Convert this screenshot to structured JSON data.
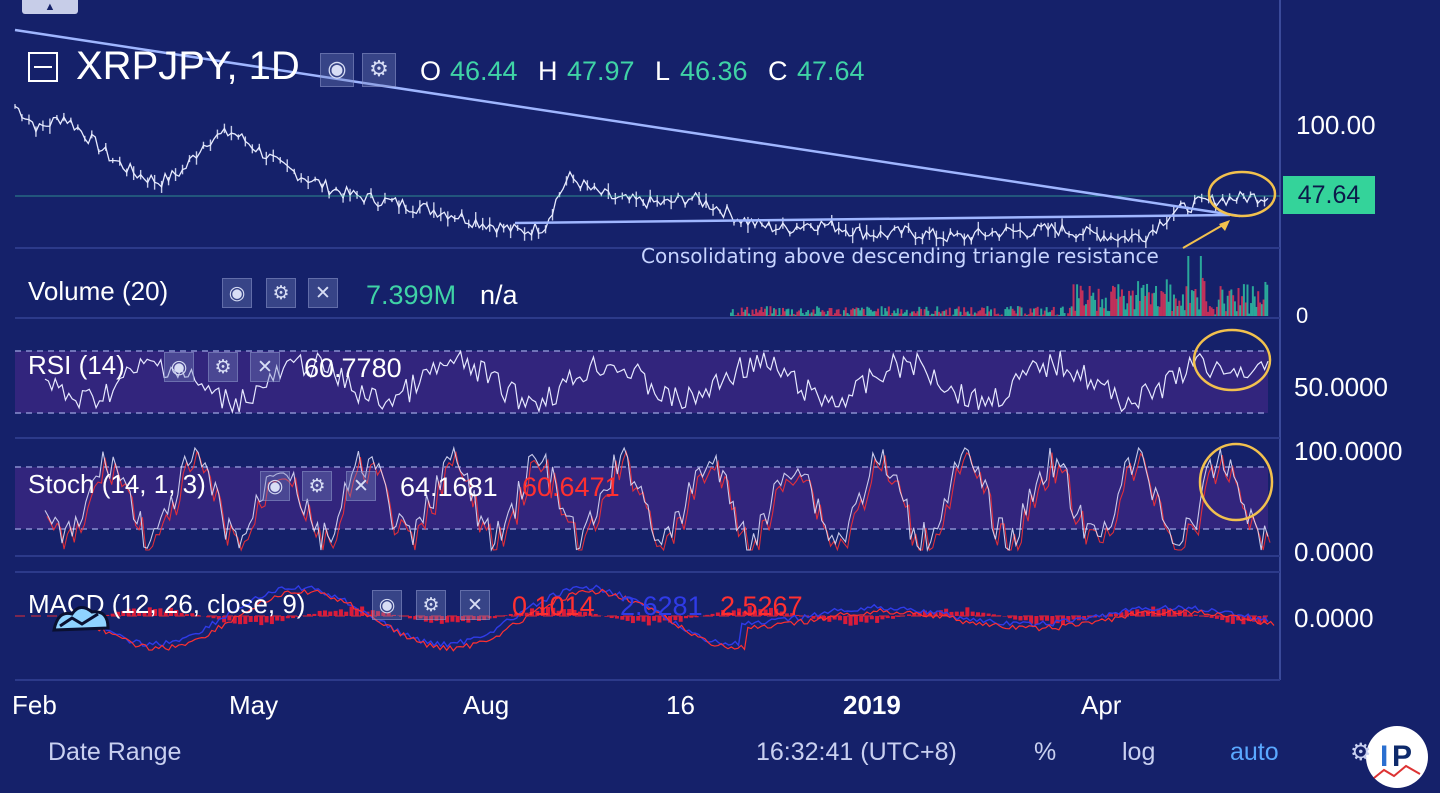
{
  "header": {
    "symbol": "XRPJPY, 1D",
    "o_label": "O",
    "o_value": "46.44",
    "h_label": "H",
    "h_value": "47.97",
    "l_label": "L",
    "l_value": "46.36",
    "c_label": "C",
    "c_value": "47.64"
  },
  "price_axis": {
    "tick": "100.00",
    "last_price": "47.64"
  },
  "annotation": "Consolidating above descending triangle resistance",
  "volume": {
    "title": "Volume (20)",
    "value": "7.399M",
    "extra": "n/a",
    "axis_tick": "0"
  },
  "rsi": {
    "title": "RSI (14)",
    "value": "60.7780",
    "axis_tick": "50.0000"
  },
  "stoch": {
    "title": "Stoch (14, 1, 3)",
    "k_value": "64.1681",
    "d_value": "60.6471",
    "axis_top": "100.0000",
    "axis_bottom": "0.0000"
  },
  "macd": {
    "title": "MACD (12, 26, close, 9)",
    "hist_value": "0.1014",
    "macd_value": "2.6281",
    "signal_value": "2.5267",
    "axis_tick": "0.0000"
  },
  "x_axis": {
    "ticks": [
      "Feb",
      "May",
      "Aug",
      "16",
      "2019",
      "Apr"
    ]
  },
  "footer": {
    "date_range": "Date Range",
    "time": "16:32:41 (UTC+8)",
    "percent": "%",
    "log": "log",
    "auto": "auto"
  },
  "icons": {
    "eye": "eye-icon",
    "gear": "gear-icon",
    "close": "close-icon",
    "logo": "watermark-logo-icon"
  },
  "colors": {
    "background": "#15216a",
    "price_line": "#e8ecff",
    "trendline": "#9fb6ff",
    "highlight_circle": "#f2c14e",
    "up_value": "#3fd3a6",
    "price_badge": "#34d39a",
    "macd_hist": "#d91c3a",
    "macd_line": "#2f3be8",
    "stoch_d": "#ff3030",
    "band_fill": "#4b2a8c"
  },
  "chart_data": {
    "type": "line",
    "title": "XRPJPY, 1D",
    "x_ticks": [
      "Feb",
      "May",
      "Aug",
      "16",
      "2019",
      "Apr"
    ],
    "price_series": {
      "name": "XRPJPY",
      "values": [
        120,
        95,
        108,
        88,
        70,
        60,
        55,
        62,
        85,
        92,
        78,
        65,
        58,
        52,
        48,
        46,
        44,
        42,
        40,
        37,
        35,
        33,
        35,
        58,
        50,
        46,
        45,
        44,
        47,
        43,
        38,
        35,
        34,
        36,
        35,
        33,
        32,
        33,
        32,
        31,
        32,
        33,
        33,
        34,
        33,
        32,
        31,
        32,
        40,
        44,
        46,
        47,
        47.64
      ]
    },
    "ohlc_last": {
      "open": 46.44,
      "high": 47.97,
      "low": 46.36,
      "close": 47.64
    },
    "rsi_last": 60.778,
    "stoch_last": {
      "k": 64.1681,
      "d": 60.6471
    },
    "macd_last": {
      "hist": 0.1014,
      "macd": 2.6281,
      "signal": 2.5267
    },
    "volume_last": "7.399M"
  }
}
